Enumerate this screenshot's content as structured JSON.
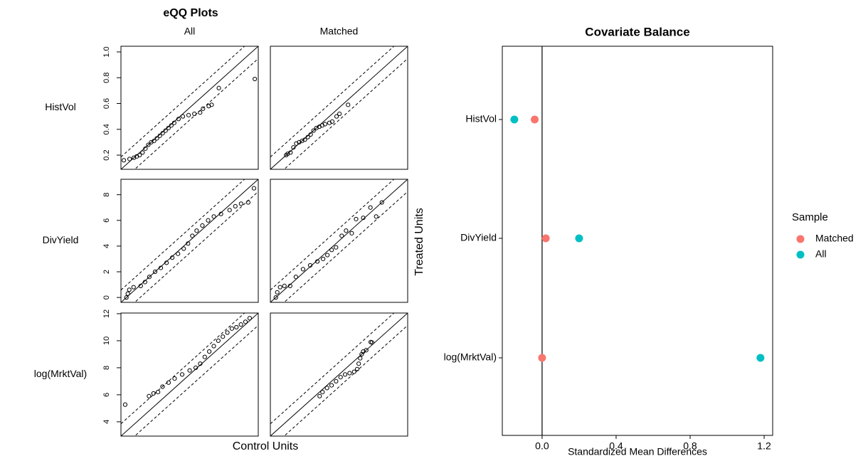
{
  "chart_data": [
    {
      "type": "qq",
      "title": "eQQ Plots",
      "columns": [
        "All",
        "Matched"
      ],
      "xlabel": "Control Units",
      "ylabel": "Treated Units",
      "rows": [
        {
          "label": "HistVol",
          "ylim": [
            0.09,
            1.044
          ],
          "yticks": [
            0.2,
            0.4,
            0.6,
            0.8,
            {
              "value": 1,
              "label": "1.0"
            }
          ],
          "panels": [
            {
              "x": [
                0.11,
                0.15,
                0.18,
                0.2,
                0.22,
                0.24,
                0.26,
                0.28,
                0.3,
                0.32,
                0.34,
                0.36,
                0.38,
                0.4,
                0.42,
                0.44,
                0.46,
                0.49,
                0.52,
                0.56,
                0.6,
                0.64,
                0.66,
                0.7,
                0.72,
                0.77,
                1.02
              ],
              "y": [
                0.16,
                0.17,
                0.18,
                0.19,
                0.2,
                0.22,
                0.25,
                0.28,
                0.3,
                0.31,
                0.33,
                0.35,
                0.37,
                0.39,
                0.41,
                0.43,
                0.45,
                0.48,
                0.5,
                0.51,
                0.52,
                0.53,
                0.56,
                0.58,
                0.59,
                0.72,
                0.79
              ]
            },
            {
              "x": [
                0.2,
                0.21,
                0.23,
                0.25,
                0.27,
                0.29,
                0.31,
                0.33,
                0.35,
                0.37,
                0.39,
                0.41,
                0.43,
                0.45,
                0.47,
                0.5,
                0.52,
                0.55,
                0.57,
                0.63
              ],
              "y": [
                0.2,
                0.21,
                0.22,
                0.26,
                0.29,
                0.3,
                0.31,
                0.32,
                0.34,
                0.36,
                0.39,
                0.41,
                0.42,
                0.43,
                0.44,
                0.45,
                0.46,
                0.5,
                0.52,
                0.59
              ]
            }
          ]
        },
        {
          "label": "DivYield",
          "ylim": [
            -0.38,
            9.2
          ],
          "yticks": [
            0,
            2,
            4,
            6,
            8
          ],
          "panels": [
            {
              "x": [
                0,
                0.1,
                0.2,
                0.5,
                1.0,
                1.3,
                1.6,
                2.0,
                2.4,
                2.8,
                3.2,
                3.6,
                4.0,
                4.3,
                4.6,
                4.9,
                5.3,
                5.7,
                6.1,
                6.6,
                7.2,
                7.6,
                8.0,
                8.5,
                8.9
              ],
              "y": [
                0,
                0.3,
                0.6,
                0.8,
                0.9,
                1.2,
                1.6,
                2.0,
                2.3,
                2.7,
                3.1,
                3.4,
                3.8,
                4.2,
                4.8,
                5.2,
                5.6,
                6.0,
                6.3,
                6.5,
                6.8,
                7.1,
                7.3,
                7.4,
                8.5
              ]
            },
            {
              "x": [
                0,
                0.1,
                0.3,
                0.6,
                1.0,
                1.4,
                1.9,
                2.4,
                2.9,
                3.3,
                3.6,
                3.9,
                4.2,
                4.6,
                4.9,
                5.3,
                5.6,
                6.1,
                6.6,
                7.0,
                7.4
              ],
              "y": [
                0,
                0.4,
                0.8,
                0.9,
                0.9,
                1.6,
                2.2,
                2.5,
                2.8,
                3.0,
                3.3,
                3.7,
                3.9,
                4.8,
                5.2,
                5.0,
                6.1,
                6.2,
                7.0,
                6.3,
                7.4
              ]
            }
          ]
        },
        {
          "label": "log(MrktVal)",
          "ylim": [
            2.94,
            12.05
          ],
          "yticks": [
            4,
            6,
            8,
            10,
            12
          ],
          "panels": [
            {
              "x": [
                3.22,
                4.8,
                5.1,
                5.4,
                5.7,
                6.1,
                6.5,
                7.0,
                7.5,
                7.9,
                8.2,
                8.5,
                8.8,
                9.1,
                9.4,
                9.7,
                10.0,
                10.3,
                10.6,
                10.9,
                11.2,
                11.48
              ],
              "y": [
                5.27,
                5.9,
                6.1,
                6.2,
                6.6,
                6.9,
                7.2,
                7.5,
                7.8,
                8.0,
                8.3,
                8.8,
                9.2,
                9.6,
                10.0,
                10.3,
                10.6,
                10.9,
                11.0,
                11.2,
                11.4,
                11.67
              ]
            },
            {
              "x": [
                6.21,
                6.4,
                6.7,
                7.0,
                7.3,
                7.6,
                7.9,
                8.2,
                8.5,
                8.7,
                8.8,
                8.9,
                9.0,
                9.1,
                9.3,
                9.6,
                9.68
              ],
              "y": [
                5.9,
                6.2,
                6.5,
                6.7,
                7.0,
                7.3,
                7.5,
                7.6,
                7.7,
                7.9,
                8.3,
                8.7,
                9.0,
                9.2,
                9.3,
                9.9,
                9.87
              ]
            }
          ]
        }
      ]
    },
    {
      "type": "dot",
      "title": "Covariate Balance",
      "xlabel": "Standardized Mean Differences",
      "categories": [
        "HistVol",
        "DivYield",
        "log(MrktVal)"
      ],
      "series": [
        {
          "name": "Matched",
          "color": "#F8766D",
          "values": [
            -0.04,
            0.02,
            0.0
          ]
        },
        {
          "name": "All",
          "color": "#00BFC4",
          "values": [
            -0.15,
            0.2,
            1.18
          ]
        }
      ],
      "legend_title": "Sample",
      "xlim": [
        -0.215,
        1.246
      ],
      "xticks": [
        {
          "value": 0,
          "label": "0.0"
        },
        0.4,
        0.8,
        1.2
      ]
    }
  ]
}
